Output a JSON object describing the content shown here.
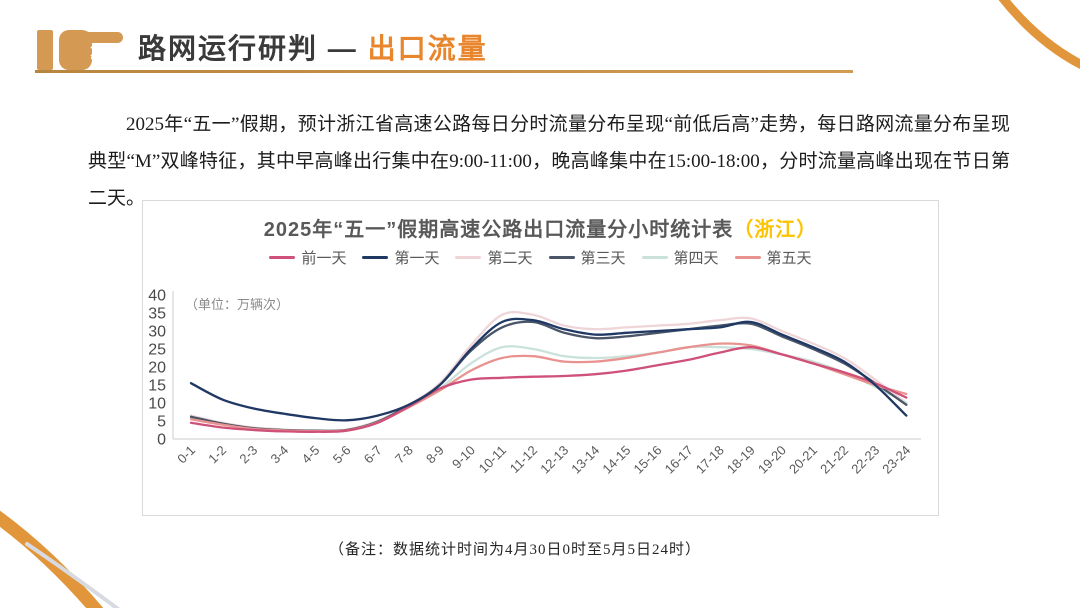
{
  "header": {
    "title_main": "路网运行研判 —",
    "title_accent": "出口流量",
    "accent_color": "#e8862d",
    "icon": "pointing-hand"
  },
  "intro": {
    "text": "2025年“五一”假期，预计浙江省高速公路每日分时流量分布呈现“前低后高”走势，每日路网流量分布呈现典型“M”双峰特征，其中早高峰出行集中在9:00-11:00，晚高峰集中在15:00-18:00，分时流量高峰出现在节日第二天。"
  },
  "chart_data": {
    "type": "line",
    "title": "2025年“五一”假期高速公路出口流量分小时统计表",
    "title_suffix": "（浙江）",
    "title_suffix_color": "#fdc300",
    "unit_label": "（单位：万辆次）",
    "ylim": [
      0,
      40
    ],
    "ytick_step": 5,
    "grid": false,
    "legend_position": "top",
    "categories": [
      "0-1",
      "1-2",
      "2-3",
      "3-4",
      "4-5",
      "5-6",
      "6-7",
      "7-8",
      "8-9",
      "9-10",
      "10-11",
      "11-12",
      "12-13",
      "13-14",
      "14-15",
      "15-16",
      "16-17",
      "17-18",
      "18-19",
      "19-20",
      "20-21",
      "21-22",
      "22-23",
      "23-24"
    ],
    "series": [
      {
        "name": "前一天",
        "color": "#cf5179",
        "values": [
          4.5,
          3.2,
          2.5,
          2.1,
          2.0,
          2.3,
          4.5,
          9.0,
          14.0,
          16.5,
          17.0,
          17.3,
          17.5,
          18.0,
          19.0,
          20.5,
          22.0,
          24.0,
          25.5,
          23.5,
          21.0,
          18.5,
          15.5,
          11.5
        ]
      },
      {
        "name": "第一天",
        "color": "#1f3864",
        "values": [
          15.5,
          11.0,
          8.5,
          7.0,
          5.8,
          5.2,
          6.5,
          9.5,
          15.0,
          25.0,
          32.5,
          33.0,
          30.5,
          29.0,
          29.5,
          30.0,
          30.5,
          31.0,
          32.5,
          29.0,
          25.5,
          21.5,
          15.0,
          6.5
        ]
      },
      {
        "name": "第二天",
        "color": "#efd5d8",
        "values": [
          6.5,
          4.5,
          3.2,
          2.6,
          2.3,
          2.6,
          5.0,
          9.5,
          15.5,
          26.0,
          34.5,
          34.5,
          31.5,
          30.5,
          31.0,
          31.5,
          32.0,
          33.0,
          33.5,
          30.0,
          26.5,
          22.5,
          16.5,
          10.0
        ]
      },
      {
        "name": "第三天",
        "color": "#4a5568",
        "values": [
          6.2,
          4.3,
          3.0,
          2.5,
          2.3,
          2.5,
          4.8,
          9.3,
          15.0,
          24.5,
          31.0,
          32.5,
          29.5,
          28.0,
          28.5,
          29.5,
          30.5,
          31.5,
          32.0,
          28.5,
          25.0,
          21.0,
          15.5,
          9.5
        ]
      },
      {
        "name": "第四天",
        "color": "#cbe2da",
        "values": [
          6.0,
          4.2,
          3.0,
          2.5,
          2.3,
          2.5,
          4.8,
          9.0,
          14.0,
          21.0,
          25.5,
          25.0,
          23.0,
          22.5,
          23.0,
          24.0,
          25.5,
          25.5,
          25.0,
          23.5,
          21.5,
          18.5,
          14.5,
          10.0
        ]
      },
      {
        "name": "第五天",
        "color": "#e89390",
        "values": [
          5.5,
          4.0,
          2.8,
          2.4,
          2.2,
          2.4,
          4.6,
          8.8,
          13.5,
          19.0,
          22.5,
          23.0,
          21.5,
          21.5,
          22.5,
          24.0,
          25.5,
          26.5,
          26.0,
          23.5,
          21.0,
          18.0,
          15.0,
          12.5
        ]
      }
    ]
  },
  "footnote": {
    "text": "（备注：数据统计时间为4月30日0时至5月5日24时）"
  },
  "decor": {
    "arc_color": "#e2963c",
    "hand_color": "#d49a54",
    "rule_color": "#c5924e"
  }
}
